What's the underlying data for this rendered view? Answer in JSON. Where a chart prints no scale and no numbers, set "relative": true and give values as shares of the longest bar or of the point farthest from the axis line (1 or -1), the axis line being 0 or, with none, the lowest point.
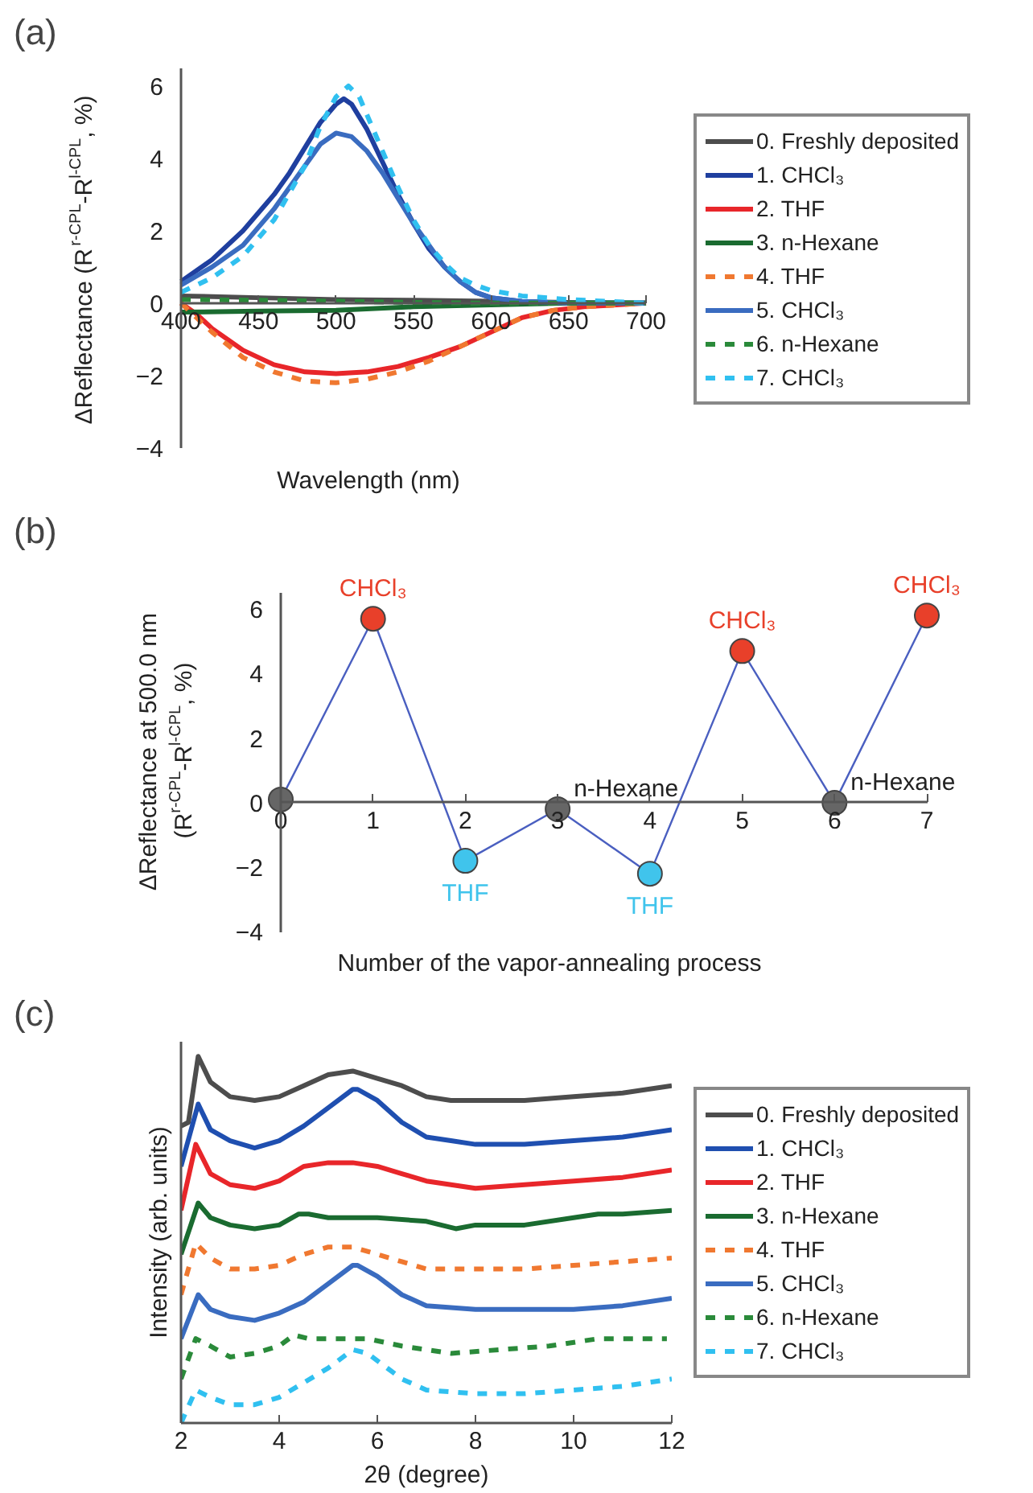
{
  "chart_data": [
    {
      "type": "line",
      "title": "(a)",
      "xlabel": "Wavelength (nm)",
      "ylabel": "ΔReflectance (R$^{r-CPL}$-R$^{l-CPL}$, %)",
      "xlim": [
        400,
        700
      ],
      "xticks": [
        400,
        450,
        500,
        550,
        600,
        650,
        700
      ],
      "ylim": [
        -4,
        6.5
      ],
      "yticks": [
        -4,
        -2,
        0,
        2,
        4,
        6
      ],
      "grid": false,
      "legend": "right",
      "series": [
        {
          "name": "0. Freshly deposited",
          "color": "#4d4d4d",
          "line_style": "solid",
          "x": [
            400,
            450,
            500,
            550,
            600,
            650,
            700
          ],
          "values": [
            0.2,
            0.15,
            0.1,
            0.08,
            0.05,
            0.02,
            0
          ]
        },
        {
          "name": "1. CHCl₃",
          "color": "#1f3f9f",
          "line_style": "solid",
          "x": [
            400,
            420,
            440,
            460,
            470,
            480,
            490,
            500,
            505,
            510,
            520,
            530,
            540,
            550,
            560,
            570,
            580,
            590,
            600,
            620,
            650,
            700
          ],
          "values": [
            0.6,
            1.2,
            2.0,
            3.0,
            3.6,
            4.3,
            5.0,
            5.5,
            5.65,
            5.5,
            4.8,
            3.9,
            3.0,
            2.2,
            1.5,
            1.0,
            0.6,
            0.3,
            0.15,
            0.05,
            0,
            0
          ]
        },
        {
          "name": "2. THF",
          "color": "#e8262a",
          "line_style": "solid",
          "x": [
            400,
            410,
            420,
            440,
            460,
            480,
            500,
            520,
            540,
            560,
            580,
            600,
            620,
            640,
            660,
            700
          ],
          "values": [
            0,
            -0.3,
            -0.7,
            -1.3,
            -1.7,
            -1.9,
            -1.95,
            -1.9,
            -1.75,
            -1.5,
            -1.2,
            -0.8,
            -0.4,
            -0.2,
            -0.1,
            0
          ]
        },
        {
          "name": "3. n-Hexane",
          "color": "#1a6b30",
          "line_style": "solid",
          "x": [
            400,
            450,
            500,
            550,
            600,
            650,
            700
          ],
          "values": [
            -0.25,
            -0.22,
            -0.2,
            -0.1,
            -0.05,
            0,
            0
          ]
        },
        {
          "name": "4. THF",
          "color": "#f07830",
          "line_style": "dashed",
          "x": [
            400,
            410,
            420,
            440,
            460,
            480,
            500,
            520,
            540,
            560,
            580,
            600,
            620,
            640,
            660,
            700
          ],
          "values": [
            0,
            -0.4,
            -0.8,
            -1.5,
            -1.9,
            -2.15,
            -2.2,
            -2.1,
            -1.9,
            -1.6,
            -1.2,
            -0.8,
            -0.4,
            -0.2,
            -0.1,
            0
          ]
        },
        {
          "name": "5. CHCl₃",
          "color": "#3a6cc0",
          "line_style": "solid",
          "x": [
            400,
            420,
            440,
            460,
            480,
            490,
            500,
            510,
            520,
            530,
            540,
            550,
            560,
            570,
            580,
            590,
            600,
            620,
            650,
            700
          ],
          "values": [
            0.5,
            1.0,
            1.6,
            2.6,
            3.8,
            4.4,
            4.7,
            4.6,
            4.2,
            3.6,
            2.9,
            2.2,
            1.6,
            1.0,
            0.6,
            0.3,
            0.15,
            0.05,
            0,
            0
          ]
        },
        {
          "name": "6. n-Hexane",
          "color": "#2a8a3a",
          "line_style": "dashed",
          "x": [
            400,
            450,
            500,
            550,
            600,
            650,
            700
          ],
          "values": [
            0.1,
            0.08,
            0.05,
            0.02,
            0,
            0,
            0
          ]
        },
        {
          "name": "7. CHCl₃",
          "color": "#30c0f0",
          "line_style": "dashed",
          "x": [
            400,
            420,
            440,
            460,
            480,
            490,
            500,
            508,
            515,
            520,
            530,
            540,
            550,
            560,
            570,
            580,
            590,
            600,
            620,
            650,
            700
          ],
          "values": [
            0.3,
            0.7,
            1.3,
            2.3,
            3.8,
            4.9,
            5.7,
            6.0,
            5.7,
            5.2,
            4.2,
            3.2,
            2.3,
            1.6,
            1.1,
            0.7,
            0.5,
            0.35,
            0.2,
            0.1,
            0
          ]
        }
      ]
    },
    {
      "type": "line",
      "title": "(b)",
      "xlabel": "Number of the vapor-annealing process",
      "ylabel": "ΔReflectance at 500.0 nm\n(R$^{r-CPL}$-R$^{l-CPL}$, %)",
      "x": [
        0,
        1,
        2,
        3,
        4,
        5,
        6,
        7
      ],
      "xlim": [
        0,
        7
      ],
      "xticks": [
        0,
        1,
        2,
        3,
        4,
        5,
        6,
        7
      ],
      "ylim": [
        -4,
        6.5
      ],
      "yticks": [
        -4,
        -2,
        0,
        2,
        4,
        6
      ],
      "grid": false,
      "marker": "circle",
      "series": [
        {
          "color": "#4a5fc0",
          "values": [
            0.1,
            5.7,
            -1.8,
            -0.2,
            -2.2,
            4.7,
            0,
            5.8
          ],
          "colors": [
            "#666666",
            "#e8402a",
            "#40c4ec",
            "#666666",
            "#40c4ec",
            "#e8402a",
            "#666666",
            "#e8402a"
          ]
        }
      ],
      "annotations": [
        {
          "text": "CHCl₃",
          "x": 1,
          "y": 5.7
        },
        {
          "text": "THF",
          "x": 2,
          "y": -1.8
        },
        {
          "text": "n-Hexane",
          "x": 3,
          "y": -0.2
        },
        {
          "text": "THF",
          "x": 4,
          "y": -2.2
        },
        {
          "text": "CHCl₃",
          "x": 5,
          "y": 4.7
        },
        {
          "text": "n-Hexane",
          "x": 6,
          "y": 0
        },
        {
          "text": "CHCl₃",
          "x": 7,
          "y": 5.8
        }
      ]
    },
    {
      "type": "line",
      "title": "(c)",
      "xlabel": "2θ (degree)",
      "ylabel": "Intensity (arb. units)",
      "relative": true,
      "xlim": [
        2,
        12
      ],
      "xticks": [
        2,
        4,
        6,
        8,
        10,
        12
      ],
      "grid": false,
      "legend": "right",
      "series": [
        {
          "name": "0. Freshly deposited",
          "color": "#4d4d4d",
          "line_style": "solid",
          "x": [
            2,
            2.15,
            2.35,
            2.6,
            3,
            3.5,
            4,
            4.5,
            5,
            5.5,
            6,
            6.5,
            7,
            7.5,
            8,
            9,
            10,
            11,
            12
          ],
          "values": [
            0.81,
            0.82,
            1.0,
            0.93,
            0.89,
            0.88,
            0.89,
            0.92,
            0.95,
            0.96,
            0.94,
            0.92,
            0.89,
            0.88,
            0.88,
            0.88,
            0.89,
            0.9,
            0.92
          ]
        },
        {
          "name": "1. CHCl₃",
          "color": "#1f4fb0",
          "line_style": "solid",
          "x": [
            2,
            2.35,
            2.6,
            3,
            3.5,
            4,
            4.5,
            5,
            5.5,
            5.6,
            6,
            6.5,
            7,
            7.5,
            8,
            9,
            10,
            11,
            12
          ],
          "values": [
            0.7,
            0.87,
            0.8,
            0.77,
            0.75,
            0.77,
            0.81,
            0.86,
            0.91,
            0.91,
            0.88,
            0.82,
            0.78,
            0.77,
            0.76,
            0.76,
            0.77,
            0.78,
            0.8
          ]
        },
        {
          "name": "2. THF",
          "color": "#e8262a",
          "line_style": "solid",
          "x": [
            2,
            2.3,
            2.6,
            3,
            3.5,
            4,
            4.5,
            5,
            5.5,
            6,
            6.5,
            7,
            7.5,
            8,
            9,
            10,
            11,
            12
          ],
          "values": [
            0.58,
            0.76,
            0.68,
            0.65,
            0.64,
            0.66,
            0.7,
            0.71,
            0.71,
            0.7,
            0.68,
            0.66,
            0.65,
            0.64,
            0.65,
            0.66,
            0.67,
            0.69
          ]
        },
        {
          "name": "3. n-Hexane",
          "color": "#1a6b30",
          "line_style": "solid",
          "x": [
            2,
            2.35,
            2.6,
            3,
            3.5,
            4,
            4.4,
            4.6,
            5,
            6,
            7,
            7.6,
            8,
            9,
            10,
            10.5,
            11,
            12
          ],
          "values": [
            0.46,
            0.6,
            0.56,
            0.54,
            0.53,
            0.54,
            0.57,
            0.57,
            0.56,
            0.56,
            0.55,
            0.53,
            0.54,
            0.54,
            0.56,
            0.57,
            0.57,
            0.58
          ]
        },
        {
          "name": "4. THF",
          "color": "#f07830",
          "line_style": "dashed",
          "x": [
            2,
            2.3,
            2.6,
            3,
            3.5,
            4,
            4.5,
            5,
            5.5,
            6,
            6.5,
            7,
            8,
            9,
            10,
            11,
            12
          ],
          "values": [
            0.35,
            0.49,
            0.45,
            0.42,
            0.42,
            0.43,
            0.46,
            0.48,
            0.48,
            0.46,
            0.44,
            0.42,
            0.42,
            0.42,
            0.43,
            0.44,
            0.45
          ]
        },
        {
          "name": "5. CHCl₃",
          "color": "#3a6cc0",
          "line_style": "solid",
          "x": [
            2,
            2.35,
            2.6,
            3,
            3.5,
            4,
            4.5,
            5,
            5.5,
            5.6,
            6,
            6.5,
            7,
            8,
            9,
            10,
            11,
            12
          ],
          "values": [
            0.23,
            0.35,
            0.31,
            0.29,
            0.28,
            0.3,
            0.33,
            0.38,
            0.43,
            0.43,
            0.4,
            0.35,
            0.32,
            0.31,
            0.31,
            0.31,
            0.32,
            0.34
          ]
        },
        {
          "name": "6. n-Hexane",
          "color": "#2a8a3a",
          "line_style": "dashed",
          "x": [
            2,
            2.3,
            2.6,
            3,
            3.5,
            4,
            4.3,
            4.6,
            5,
            5.8,
            6.5,
            7.5,
            8.5,
            9.5,
            10.5,
            11.9
          ],
          "values": [
            0.12,
            0.23,
            0.21,
            0.18,
            0.19,
            0.21,
            0.24,
            0.23,
            0.23,
            0.23,
            0.21,
            0.19,
            0.2,
            0.21,
            0.23,
            0.23
          ]
        },
        {
          "name": "7. CHCl₃",
          "color": "#30c0f0",
          "line_style": "dashed",
          "x": [
            2,
            2.3,
            2.6,
            3,
            3.5,
            4,
            4.5,
            5,
            5.5,
            5.8,
            6.5,
            7,
            8,
            9,
            10,
            11,
            12
          ],
          "values": [
            0,
            0.09,
            0.07,
            0.05,
            0.05,
            0.07,
            0.11,
            0.15,
            0.2,
            0.19,
            0.12,
            0.09,
            0.08,
            0.08,
            0.09,
            0.1,
            0.12
          ]
        }
      ]
    }
  ]
}
